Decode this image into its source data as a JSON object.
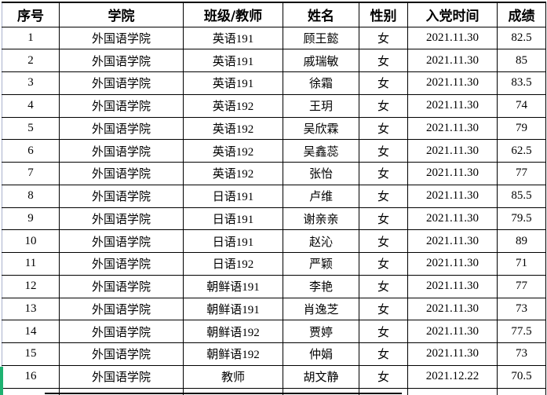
{
  "table": {
    "headers": [
      "序号",
      "学院",
      "班级/教师",
      "姓名",
      "性别",
      "入党时间",
      "成绩"
    ],
    "rows": [
      [
        "1",
        "外国语学院",
        "英语191",
        "顾王懿",
        "女",
        "2021.11.30",
        "82.5"
      ],
      [
        "2",
        "外国语学院",
        "英语191",
        "戚瑞敏",
        "女",
        "2021.11.30",
        "85"
      ],
      [
        "3",
        "外国语学院",
        "英语191",
        "徐霜",
        "女",
        "2021.11.30",
        "83.5"
      ],
      [
        "4",
        "外国语学院",
        "英语192",
        "王玥",
        "女",
        "2021.11.30",
        "74"
      ],
      [
        "5",
        "外国语学院",
        "英语192",
        "吴欣霖",
        "女",
        "2021.11.30",
        "79"
      ],
      [
        "6",
        "外国语学院",
        "英语192",
        "吴鑫蕊",
        "女",
        "2021.11.30",
        "62.5"
      ],
      [
        "7",
        "外国语学院",
        "英语192",
        "张怡",
        "女",
        "2021.11.30",
        "77"
      ],
      [
        "8",
        "外国语学院",
        "日语191",
        "卢维",
        "女",
        "2021.11.30",
        "85.5"
      ],
      [
        "9",
        "外国语学院",
        "日语191",
        "谢亲亲",
        "女",
        "2021.11.30",
        "79.5"
      ],
      [
        "10",
        "外国语学院",
        "日语191",
        "赵沁",
        "女",
        "2021.11.30",
        "89"
      ],
      [
        "11",
        "外国语学院",
        "日语192",
        "严颖",
        "女",
        "2021.11.30",
        "71"
      ],
      [
        "12",
        "外国语学院",
        "朝鲜语191",
        "李艳",
        "女",
        "2021.11.30",
        "77"
      ],
      [
        "13",
        "外国语学院",
        "朝鲜语191",
        "肖逸芝",
        "女",
        "2021.11.30",
        "73"
      ],
      [
        "14",
        "外国语学院",
        "朝鲜语192",
        "贾婷",
        "女",
        "2021.11.30",
        "77.5"
      ],
      [
        "15",
        "外国语学院",
        "朝鲜语192",
        "仲娟",
        "女",
        "2021.11.30",
        "73"
      ],
      [
        "16",
        "外国语学院",
        "教师",
        "胡文静",
        "女",
        "2021.12.22",
        "70.5"
      ]
    ]
  },
  "colors": {
    "row_marker_green": "#1eb271",
    "border_black": "#000000",
    "border_left_light": "#a9b1cd"
  }
}
